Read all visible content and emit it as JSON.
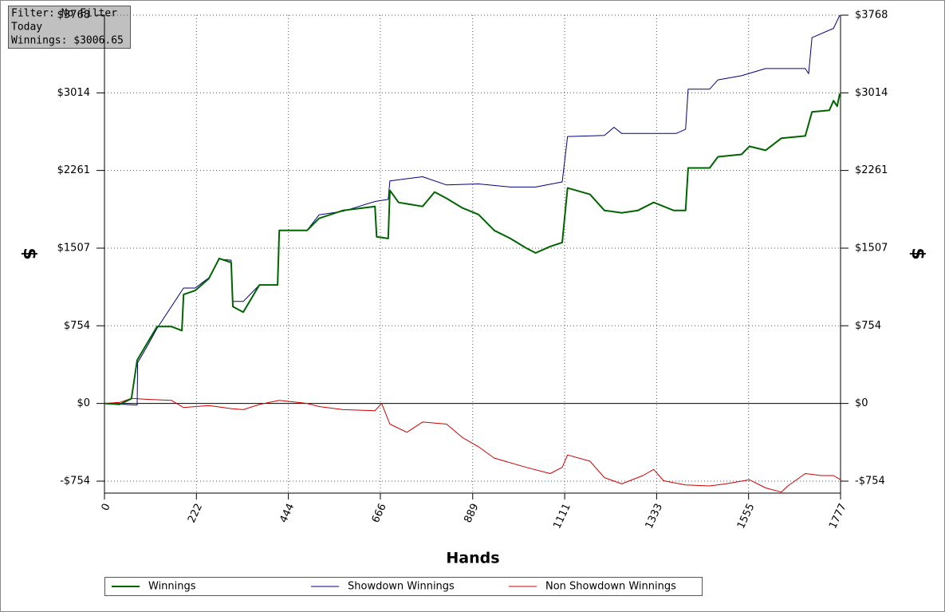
{
  "info": {
    "filter": "Filter: No Filter",
    "period": "Today",
    "winnings": "Winnings: $3006.65"
  },
  "chart_data": {
    "type": "line",
    "xlabel": "Hands",
    "ylabel": "$",
    "y2label": "$",
    "xlim": [
      0,
      1777
    ],
    "ylim": [
      -870,
      3768
    ],
    "xticks": [
      0,
      222,
      444,
      666,
      889,
      1111,
      1333,
      1555,
      1777
    ],
    "yticks": [
      {
        "value": -754,
        "label": "-$754"
      },
      {
        "value": 0,
        "label": "$0"
      },
      {
        "value": 754,
        "label": "$754"
      },
      {
        "value": 1507,
        "label": "$1507"
      },
      {
        "value": 2261,
        "label": "$2261"
      },
      {
        "value": 3014,
        "label": "$3014"
      },
      {
        "value": 3768,
        "label": "$3768"
      }
    ],
    "grid": true,
    "legend": "bottom",
    "series": [
      {
        "name": "Winnings",
        "color": "#006400",
        "x": [
          0,
          37,
          65,
          79,
          104,
          127,
          162,
          187,
          191,
          219,
          252,
          277,
          306,
          310,
          335,
          374,
          418,
          422,
          489,
          518,
          576,
          653,
          657,
          685,
          689,
          710,
          768,
          797,
          826,
          864,
          903,
          941,
          980,
          1018,
          1041,
          1076,
          1105,
          1118,
          1172,
          1207,
          1249,
          1288,
          1326,
          1374,
          1403,
          1409,
          1461,
          1481,
          1538,
          1557,
          1596,
          1634,
          1692,
          1708,
          1750,
          1760,
          1769,
          1775
        ],
        "values": [
          0,
          -8,
          47,
          420,
          590,
          746,
          746,
          707,
          1057,
          1096,
          1212,
          1407,
          1368,
          940,
          886,
          1150,
          1150,
          1679,
          1679,
          1796,
          1873,
          1912,
          1617,
          1601,
          2068,
          1951,
          1912,
          2052,
          1990,
          1897,
          1834,
          1679,
          1601,
          1508,
          1461,
          1523,
          1562,
          2091,
          2029,
          1873,
          1850,
          1873,
          1951,
          1873,
          1873,
          2285,
          2285,
          2394,
          2417,
          2495,
          2456,
          2573,
          2596,
          2829,
          2845,
          2938,
          2884,
          3006
        ]
      },
      {
        "name": "Showdown Winnings",
        "color": "#000080",
        "x": [
          0,
          79,
          80,
          104,
          127,
          191,
          219,
          252,
          277,
          306,
          310,
          335,
          374,
          418,
          422,
          489,
          518,
          576,
          653,
          685,
          689,
          768,
          826,
          903,
          980,
          1041,
          1105,
          1118,
          1207,
          1230,
          1249,
          1380,
          1403,
          1409,
          1461,
          1481,
          1538,
          1596,
          1692,
          1700,
          1708,
          1760,
          1775
        ],
        "values": [
          0,
          -15,
          396,
          560,
          730,
          1120,
          1120,
          1220,
          1400,
          1390,
          990,
          990,
          1150,
          1150,
          1680,
          1680,
          1830,
          1865,
          1960,
          1980,
          2160,
          2200,
          2120,
          2130,
          2100,
          2100,
          2150,
          2590,
          2600,
          2680,
          2620,
          2620,
          2660,
          3050,
          3050,
          3140,
          3180,
          3250,
          3250,
          3200,
          3550,
          3640,
          3768
        ]
      },
      {
        "name": "Non Showdown Winnings",
        "color": "#cc0000",
        "x": [
          0,
          37,
          65,
          104,
          162,
          191,
          252,
          306,
          335,
          374,
          422,
          489,
          518,
          576,
          653,
          669,
          689,
          730,
          768,
          826,
          864,
          903,
          941,
          1018,
          1076,
          1105,
          1118,
          1172,
          1207,
          1249,
          1300,
          1326,
          1350,
          1403,
          1461,
          1500,
          1557,
          1596,
          1634,
          1650,
          1692,
          1730,
          1760,
          1777
        ],
        "values": [
          0,
          10,
          50,
          40,
          30,
          -40,
          -20,
          -50,
          -60,
          -10,
          30,
          0,
          -30,
          -60,
          -70,
          0,
          -200,
          -280,
          -180,
          -200,
          -330,
          -420,
          -530,
          -620,
          -680,
          -620,
          -500,
          -560,
          -720,
          -780,
          -700,
          -640,
          -750,
          -790,
          -800,
          -780,
          -740,
          -820,
          -860,
          -800,
          -680,
          -700,
          -700,
          -740
        ]
      }
    ]
  }
}
